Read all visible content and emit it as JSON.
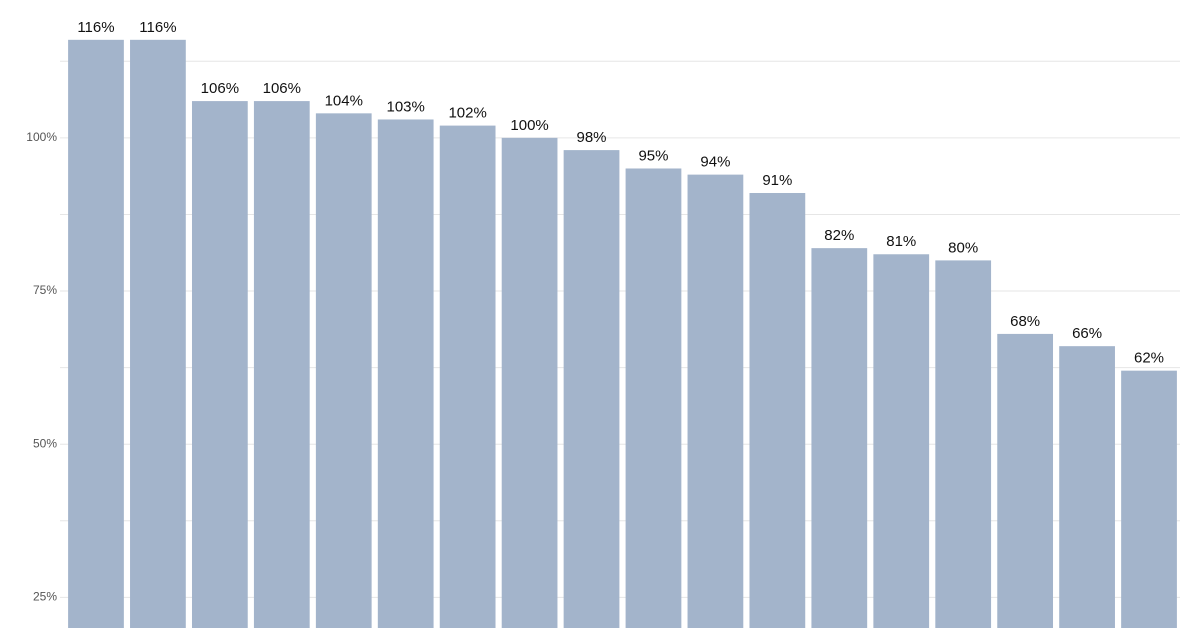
{
  "chart_data": {
    "type": "bar",
    "categories": [
      null,
      null,
      null,
      null,
      null,
      null,
      null,
      null,
      null,
      null,
      null,
      null,
      null,
      null,
      null,
      null,
      null,
      null
    ],
    "values": [
      116,
      116,
      106,
      106,
      104,
      103,
      102,
      100,
      98,
      95,
      94,
      91,
      82,
      81,
      80,
      68,
      66,
      62
    ],
    "value_labels": [
      "116%",
      "116%",
      "106%",
      "106%",
      "104%",
      "103%",
      "102%",
      "100%",
      "98%",
      "95%",
      "94%",
      "91%",
      "82%",
      "81%",
      "80%",
      "68%",
      "66%",
      "62%"
    ],
    "color": "#a3b4cb",
    "ylim": [
      20,
      122.5
    ],
    "yticks": [
      {
        "value": 25,
        "label": "25%"
      },
      {
        "value": 50,
        "label": "50%"
      },
      {
        "value": 75,
        "label": "75%"
      },
      {
        "value": 100,
        "label": "100%"
      }
    ],
    "minor_yticks": [
      37.5,
      62.5,
      87.5,
      112.5
    ],
    "grid": true
  }
}
